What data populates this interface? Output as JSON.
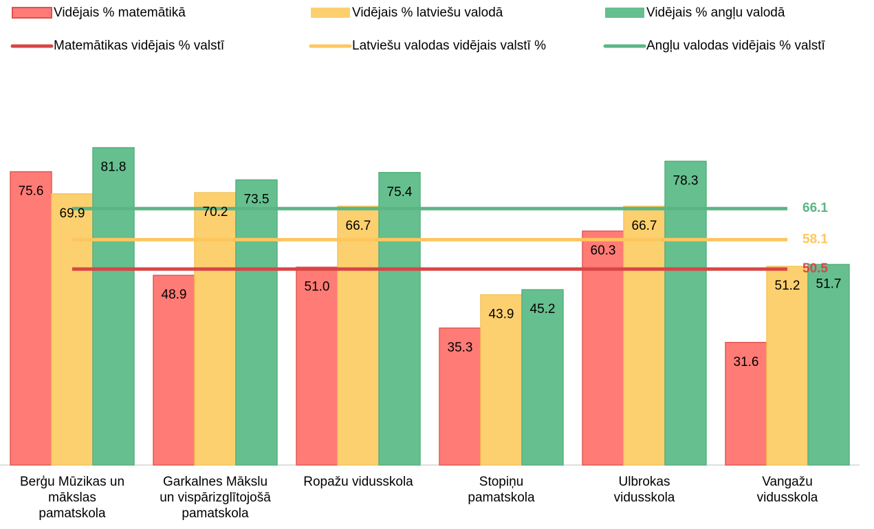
{
  "chart_data": {
    "type": "bar",
    "categories": [
      "Berģu Mūzikas un\nmākslas\npamatskola",
      "Garkalnes Mākslu\nun vispārizglītojošā\npamatskola",
      "Ropažu vidusskola",
      "Stopiņu\npamatskola",
      "Ulbrokas\nvidusskola",
      "Vangažu\nvidusskola"
    ],
    "series": [
      {
        "name": "Vidējais % matemātikā",
        "color": "#ff7b76",
        "values": [
          75.6,
          48.9,
          51.0,
          35.3,
          60.3,
          31.6
        ],
        "value_labels": [
          "75.6",
          "48.9",
          "51.0",
          "35.3",
          "60.3",
          "31.6"
        ]
      },
      {
        "name": "Vidējais % latviešu valodā",
        "color": "#fdd06f",
        "values": [
          69.9,
          70.2,
          66.7,
          43.9,
          66.7,
          51.2
        ],
        "value_labels": [
          "69.9",
          "70.2",
          "66.7",
          "43.9",
          "66.7",
          "51.2"
        ]
      },
      {
        "name": "Vidējais % angļu valodā",
        "color": "#66bf8f",
        "values": [
          81.8,
          73.5,
          75.4,
          45.2,
          78.3,
          51.7
        ],
        "value_labels": [
          "81.8",
          "73.5",
          "75.4",
          "45.2",
          "78.3",
          "51.7"
        ]
      }
    ],
    "reference_lines": [
      {
        "name": "Matemātikas vidējais % valstī",
        "color": "#d94545",
        "value": 50.5
      },
      {
        "name": "Latviešu valodas vidējais valstī %",
        "color": "#fdc65e",
        "value": 58.1
      },
      {
        "name": "Angļu valodas vidējais % valstī",
        "color": "#5bb585",
        "value": 66.1
      }
    ],
    "ylim": [
      0,
      100
    ]
  }
}
